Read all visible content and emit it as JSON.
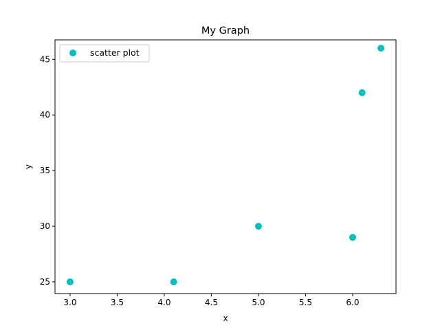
{
  "chart_data": {
    "type": "scatter",
    "title": "My Graph",
    "xlabel": "x",
    "ylabel": "y",
    "xlim": [
      2.84,
      6.46
    ],
    "ylim": [
      23.95,
      46.75
    ],
    "xticks": [
      3.0,
      3.5,
      4.0,
      4.5,
      5.0,
      5.5,
      6.0
    ],
    "xtick_labels": [
      "3.0",
      "3.5",
      "4.0",
      "4.5",
      "5.0",
      "5.5",
      "6.0"
    ],
    "yticks": [
      25,
      30,
      35,
      40,
      45
    ],
    "ytick_labels": [
      "25",
      "30",
      "35",
      "40",
      "45"
    ],
    "grid": false,
    "legend_position": "upper-left",
    "series": [
      {
        "name": "scatter plot",
        "color": "#00bfbf",
        "x": [
          3.0,
          4.1,
          5.0,
          6.0,
          6.1,
          6.3
        ],
        "y": [
          25,
          25,
          30,
          29,
          42,
          46
        ]
      }
    ]
  }
}
